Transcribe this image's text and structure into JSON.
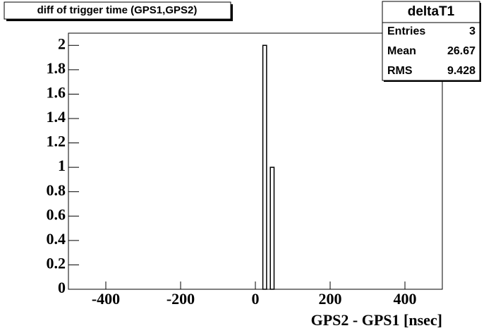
{
  "chart_data": {
    "type": "histogram",
    "title": "diff of trigger time (GPS1,GPS2)",
    "x_label": "GPS2 - GPS1 [nsec]",
    "bins": [
      20,
      30,
      40,
      50
    ],
    "values": [
      2,
      0,
      1
    ],
    "color": "#000000",
    "xlim": [
      -500,
      500
    ],
    "xticks": [
      -400,
      -200,
      0,
      200,
      400
    ],
    "ylim": [
      0,
      2.1
    ],
    "yticks": [
      0,
      0.2,
      0.4,
      0.6,
      0.8,
      1,
      1.2,
      1.4,
      1.6,
      1.8,
      2
    ],
    "stats": {
      "title": "deltaT1",
      "rows": [
        {
          "label": "Entries",
          "value": 3
        },
        {
          "label": "Mean",
          "value": 26.67
        },
        {
          "label": "RMS",
          "value": 9.428
        }
      ]
    }
  }
}
